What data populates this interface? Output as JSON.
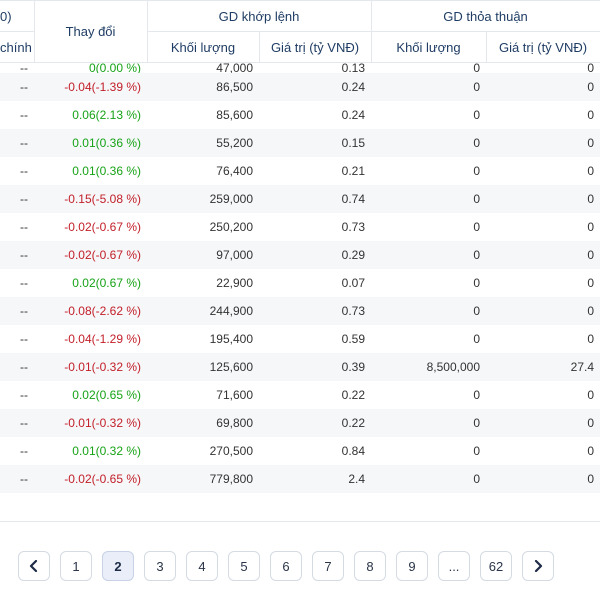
{
  "header": {
    "left_partial_top": "0)",
    "left_partial_bottom": "chính",
    "change_label": "Thay đổi",
    "matched_group": "GD khớp lệnh",
    "negotiated_group": "GD thỏa thuận",
    "volume_label": "Khối lượng",
    "value_label": "Giá trị (tỷ VNĐ)"
  },
  "rows": [
    {
      "c0": "--",
      "change": "0(0.00 %)",
      "dir": "up",
      "vol": "47,000",
      "val": "0.13",
      "nvol": "0",
      "nval": "0"
    },
    {
      "c0": "--",
      "change": "-0.04(-1.39 %)",
      "dir": "down",
      "vol": "86,500",
      "val": "0.24",
      "nvol": "0",
      "nval": "0"
    },
    {
      "c0": "--",
      "change": "0.06(2.13 %)",
      "dir": "up",
      "vol": "85,600",
      "val": "0.24",
      "nvol": "0",
      "nval": "0"
    },
    {
      "c0": "--",
      "change": "0.01(0.36 %)",
      "dir": "up",
      "vol": "55,200",
      "val": "0.15",
      "nvol": "0",
      "nval": "0"
    },
    {
      "c0": "--",
      "change": "0.01(0.36 %)",
      "dir": "up",
      "vol": "76,400",
      "val": "0.21",
      "nvol": "0",
      "nval": "0"
    },
    {
      "c0": "--",
      "change": "-0.15(-5.08 %)",
      "dir": "down",
      "vol": "259,000",
      "val": "0.74",
      "nvol": "0",
      "nval": "0"
    },
    {
      "c0": "--",
      "change": "-0.02(-0.67 %)",
      "dir": "down",
      "vol": "250,200",
      "val": "0.73",
      "nvol": "0",
      "nval": "0"
    },
    {
      "c0": "--",
      "change": "-0.02(-0.67 %)",
      "dir": "down",
      "vol": "97,000",
      "val": "0.29",
      "nvol": "0",
      "nval": "0"
    },
    {
      "c0": "--",
      "change": "0.02(0.67 %)",
      "dir": "up",
      "vol": "22,900",
      "val": "0.07",
      "nvol": "0",
      "nval": "0"
    },
    {
      "c0": "--",
      "change": "-0.08(-2.62 %)",
      "dir": "down",
      "vol": "244,900",
      "val": "0.73",
      "nvol": "0",
      "nval": "0"
    },
    {
      "c0": "--",
      "change": "-0.04(-1.29 %)",
      "dir": "down",
      "vol": "195,400",
      "val": "0.59",
      "nvol": "0",
      "nval": "0"
    },
    {
      "c0": "--",
      "change": "-0.01(-0.32 %)",
      "dir": "down",
      "vol": "125,600",
      "val": "0.39",
      "nvol": "8,500,000",
      "nval": "27.4"
    },
    {
      "c0": "--",
      "change": "0.02(0.65 %)",
      "dir": "up",
      "vol": "71,600",
      "val": "0.22",
      "nvol": "0",
      "nval": "0"
    },
    {
      "c0": "--",
      "change": "-0.01(-0.32 %)",
      "dir": "down",
      "vol": "69,800",
      "val": "0.22",
      "nvol": "0",
      "nval": "0"
    },
    {
      "c0": "--",
      "change": "0.01(0.32 %)",
      "dir": "up",
      "vol": "270,500",
      "val": "0.84",
      "nvol": "0",
      "nval": "0"
    },
    {
      "c0": "--",
      "change": "-0.02(-0.65 %)",
      "dir": "down",
      "vol": "779,800",
      "val": "2.4",
      "nvol": "0",
      "nval": "0"
    }
  ],
  "colors": {
    "up": "#17a317",
    "down": "#c2202a",
    "header_text": "#1f3d64",
    "active_page_bg": "#e9eef8"
  },
  "pagination": {
    "prev_icon": "chevron-left-icon",
    "next_icon": "chevron-right-icon",
    "pages": [
      "1",
      "2",
      "3",
      "4",
      "5",
      "6",
      "7",
      "8",
      "9",
      "...",
      "62"
    ],
    "active": "2"
  }
}
